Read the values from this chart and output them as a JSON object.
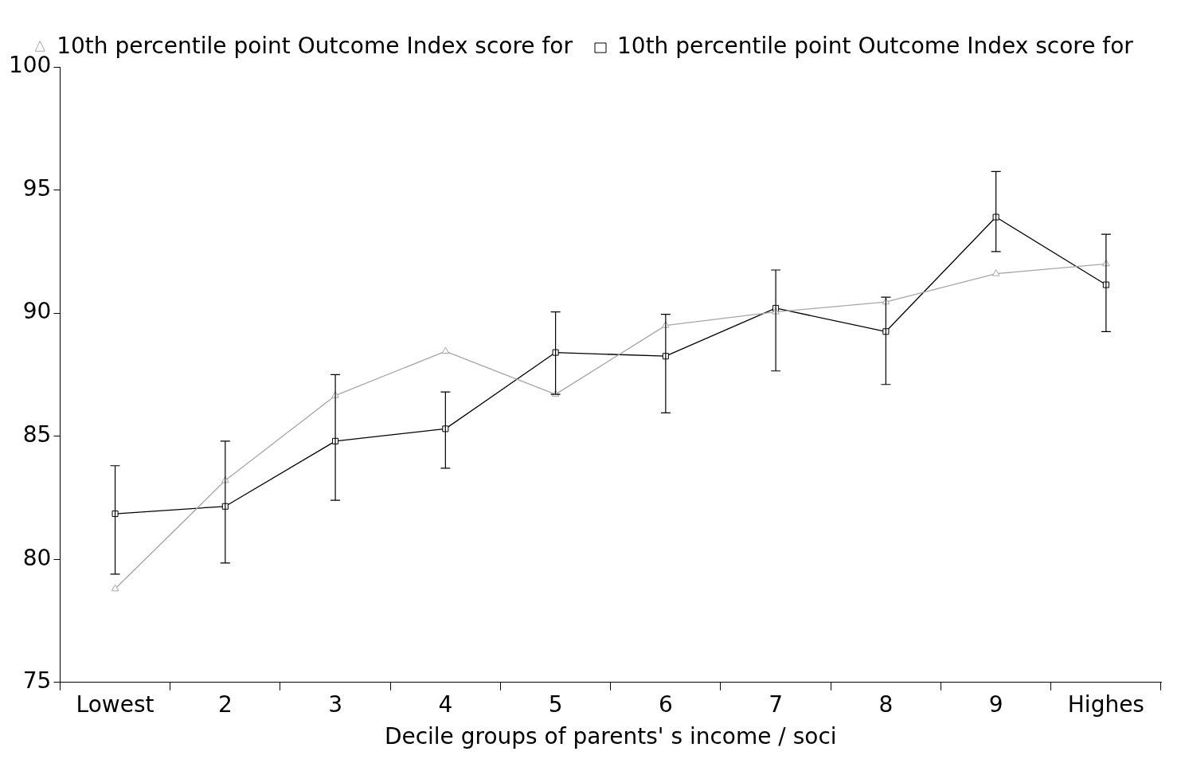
{
  "chart_data": {
    "type": "line",
    "xlabel": "Decile groups of parents' s income / soci",
    "categories": [
      "Lowest",
      "2",
      "3",
      "4",
      "5",
      "6",
      "7",
      "8",
      "9",
      "Highes"
    ],
    "series": [
      {
        "name": "10th percentile point Outcome Index score for",
        "color": "#a6a6a6",
        "marker": "triangle",
        "values": [
          78.8,
          83.2,
          86.65,
          88.45,
          86.7,
          89.5,
          90.05,
          90.45,
          91.6,
          92.0
        ]
      },
      {
        "name": "10th percentile point Outcome Index score for",
        "color": "#000000",
        "marker": "square",
        "values": [
          81.85,
          82.15,
          84.8,
          85.3,
          88.4,
          88.25,
          90.2,
          89.25,
          93.9,
          91.15
        ],
        "errors": [
          [
            79.4,
            83.8
          ],
          [
            79.85,
            84.8
          ],
          [
            82.4,
            87.5
          ],
          [
            83.7,
            86.8
          ],
          [
            86.7,
            90.05
          ],
          [
            85.95,
            89.95
          ],
          [
            87.65,
            91.75
          ],
          [
            87.1,
            90.65
          ],
          [
            92.5,
            95.75
          ],
          [
            89.25,
            93.2
          ]
        ]
      }
    ],
    "ylim": [
      75,
      100
    ],
    "yticks": [
      75,
      80,
      85,
      90,
      95,
      100
    ],
    "grid": false,
    "legend": "top",
    "line_style": "solid"
  }
}
